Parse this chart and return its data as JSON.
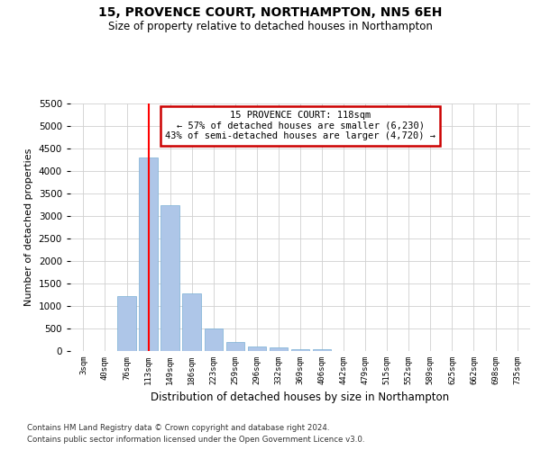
{
  "title": "15, PROVENCE COURT, NORTHAMPTON, NN5 6EH",
  "subtitle": "Size of property relative to detached houses in Northampton",
  "xlabel": "Distribution of detached houses by size in Northampton",
  "ylabel": "Number of detached properties",
  "categories": [
    "3sqm",
    "40sqm",
    "76sqm",
    "113sqm",
    "149sqm",
    "186sqm",
    "223sqm",
    "259sqm",
    "296sqm",
    "332sqm",
    "369sqm",
    "406sqm",
    "442sqm",
    "479sqm",
    "515sqm",
    "552sqm",
    "589sqm",
    "625sqm",
    "662sqm",
    "698sqm",
    "735sqm"
  ],
  "values": [
    0,
    0,
    1230,
    4300,
    3250,
    1280,
    500,
    210,
    100,
    75,
    50,
    50,
    0,
    0,
    0,
    0,
    0,
    0,
    0,
    0,
    0
  ],
  "bar_color": "#aec6e8",
  "bar_edge_color": "#7aafd4",
  "red_line_x": 3,
  "annotation_line1": "15 PROVENCE COURT: 118sqm",
  "annotation_line2": "← 57% of detached houses are smaller (6,230)",
  "annotation_line3": "43% of semi-detached houses are larger (4,720) →",
  "annotation_box_color": "#ffffff",
  "annotation_box_edge_color": "#cc0000",
  "ylim": [
    0,
    5500
  ],
  "yticks": [
    0,
    500,
    1000,
    1500,
    2000,
    2500,
    3000,
    3500,
    4000,
    4500,
    5000,
    5500
  ],
  "footer1": "Contains HM Land Registry data © Crown copyright and database right 2024.",
  "footer2": "Contains public sector information licensed under the Open Government Licence v3.0.",
  "background_color": "#ffffff",
  "grid_color": "#d0d0d0"
}
